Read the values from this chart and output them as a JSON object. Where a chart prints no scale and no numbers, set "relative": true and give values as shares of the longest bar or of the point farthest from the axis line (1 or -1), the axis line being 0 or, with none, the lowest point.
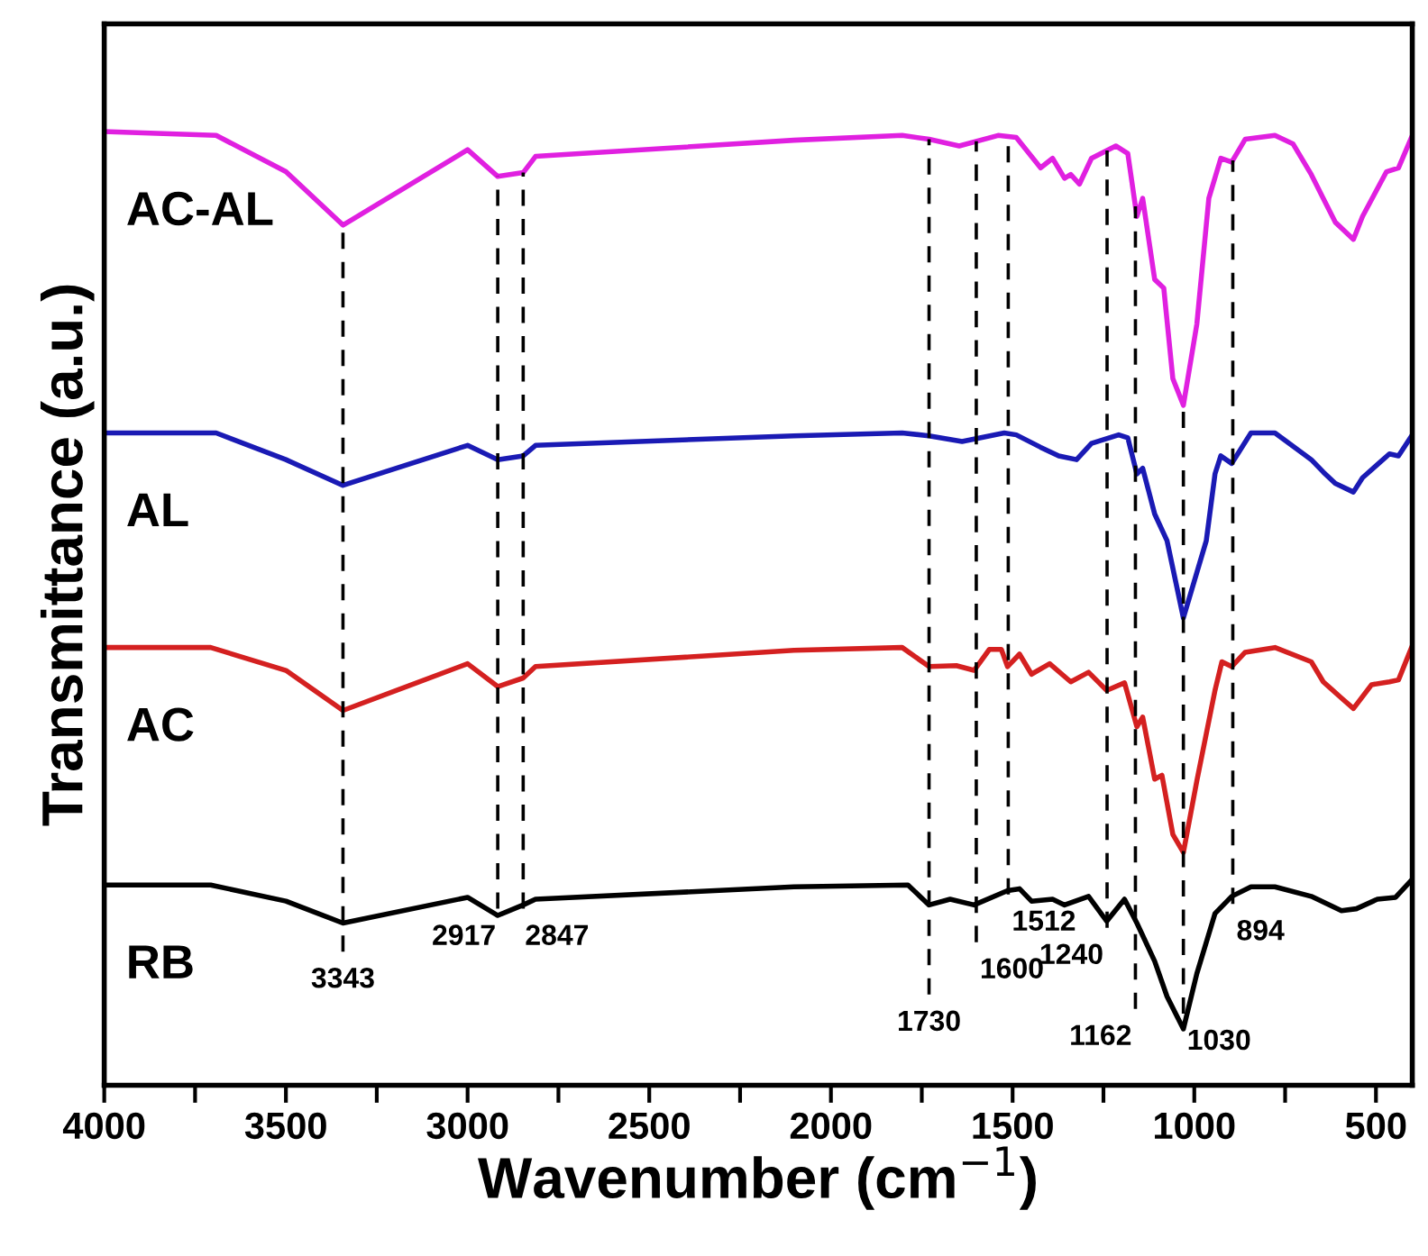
{
  "chart_data": {
    "type": "line",
    "relative": true,
    "xlabel": "Wavenumber (cm$^{−1}$)",
    "ylabel": "Transmittance (a.u.)",
    "xlim": [
      4000,
      400
    ],
    "xticks": [
      4000,
      {
        "value": 3750,
        "label": null
      },
      3500,
      {
        "value": 3250,
        "label": null
      },
      3000,
      {
        "value": 2750,
        "label": null
      },
      2500,
      {
        "value": 2250,
        "label": null
      },
      2000,
      {
        "value": 1750,
        "label": null
      },
      1500,
      {
        "value": 1250,
        "label": null
      },
      1000,
      {
        "value": 750,
        "label": null
      },
      500
    ],
    "grid": false,
    "legend": false,
    "line_style": "solid",
    "marker": "none",
    "tick_labels": "x",
    "series": [
      {
        "name": "AC-AL",
        "color": "#e020e0",
        "x": [
          4000,
          3692,
          3500,
          3343,
          3000,
          2917,
          2847,
          2813,
          2102,
          1804,
          1730,
          1647,
          1540,
          1490,
          1423,
          1390,
          1357,
          1340,
          1316,
          1283,
          1216,
          1183,
          1158,
          1142,
          1109,
          1084,
          1059,
          1030,
          993,
          960,
          927,
          897,
          860,
          778,
          728,
          678,
          645,
          612,
          562,
          537,
          471,
          438,
          400
        ],
        "values": [
          1.0,
          0.996,
          0.958,
          0.902,
          0.981,
          0.953,
          0.957,
          0.974,
          0.991,
          0.996,
          0.992,
          0.985,
          0.996,
          0.994,
          0.962,
          0.972,
          0.951,
          0.955,
          0.945,
          0.972,
          0.985,
          0.977,
          0.911,
          0.93,
          0.845,
          0.836,
          0.741,
          0.713,
          0.798,
          0.93,
          0.972,
          0.968,
          0.992,
          0.996,
          0.987,
          0.955,
          0.93,
          0.905,
          0.887,
          0.911,
          0.958,
          0.962,
          0.996
        ]
      },
      {
        "name": "AL",
        "color": "#1a1ab4",
        "x": [
          4000,
          3692,
          3500,
          3343,
          3000,
          2917,
          2847,
          2813,
          2102,
          1804,
          1730,
          1639,
          1523,
          1490,
          1423,
          1373,
          1324,
          1283,
          1208,
          1183,
          1158,
          1142,
          1109,
          1075,
          1030,
          967,
          943,
          927,
          897,
          844,
          778,
          678,
          645,
          612,
          562,
          537,
          463,
          438,
          400
        ],
        "values": [
          0.684,
          0.684,
          0.656,
          0.629,
          0.671,
          0.656,
          0.66,
          0.671,
          0.681,
          0.684,
          0.681,
          0.675,
          0.684,
          0.682,
          0.669,
          0.66,
          0.656,
          0.673,
          0.682,
          0.679,
          0.641,
          0.647,
          0.599,
          0.571,
          0.49,
          0.571,
          0.641,
          0.66,
          0.652,
          0.684,
          0.684,
          0.656,
          0.643,
          0.631,
          0.622,
          0.637,
          0.662,
          0.66,
          0.682
        ]
      },
      {
        "name": "AC",
        "color": "#d42020",
        "x": [
          4000,
          3707,
          3500,
          3343,
          3000,
          2917,
          2847,
          2813,
          2102,
          1804,
          1730,
          1655,
          1606,
          1564,
          1531,
          1514,
          1481,
          1448,
          1398,
          1340,
          1291,
          1241,
          1192,
          1158,
          1142,
          1109,
          1089,
          1059,
          1030,
          993,
          943,
          924,
          897,
          860,
          778,
          678,
          645,
          595,
          562,
          512,
          463,
          438,
          400
        ],
        "values": [
          0.459,
          0.459,
          0.435,
          0.393,
          0.442,
          0.418,
          0.427,
          0.439,
          0.456,
          0.459,
          0.439,
          0.44,
          0.435,
          0.457,
          0.457,
          0.439,
          0.452,
          0.431,
          0.442,
          0.423,
          0.433,
          0.414,
          0.422,
          0.376,
          0.386,
          0.321,
          0.325,
          0.263,
          0.244,
          0.319,
          0.414,
          0.444,
          0.439,
          0.454,
          0.459,
          0.444,
          0.423,
          0.406,
          0.395,
          0.42,
          0.423,
          0.425,
          0.461
        ]
      },
      {
        "name": "RB",
        "color": "#000000",
        "x": [
          4000,
          3707,
          3500,
          3343,
          3000,
          2917,
          2847,
          2813,
          2102,
          1788,
          1730,
          1672,
          1606,
          1514,
          1481,
          1448,
          1390,
          1357,
          1291,
          1241,
          1192,
          1158,
          1109,
          1075,
          1030,
          993,
          943,
          897,
          844,
          778,
          678,
          595,
          554,
          496,
          446,
          400
        ],
        "values": [
          0.21,
          0.21,
          0.193,
          0.17,
          0.197,
          0.178,
          0.189,
          0.195,
          0.208,
          0.21,
          0.189,
          0.195,
          0.189,
          0.204,
          0.206,
          0.193,
          0.195,
          0.189,
          0.198,
          0.172,
          0.195,
          0.17,
          0.13,
          0.093,
          0.059,
          0.117,
          0.18,
          0.198,
          0.208,
          0.208,
          0.198,
          0.183,
          0.185,
          0.195,
          0.197,
          0.216
        ]
      }
    ],
    "ref_lines": [
      {
        "axis": "x",
        "value": 3343,
        "label": "3343",
        "color": "#000000",
        "line_style": "dashed"
      },
      {
        "axis": "x",
        "value": 2917,
        "label": "2917",
        "color": "#000000",
        "line_style": "dashed"
      },
      {
        "axis": "x",
        "value": 2847,
        "label": "2847",
        "color": "#000000",
        "line_style": "dashed"
      },
      {
        "axis": "x",
        "value": 1730,
        "label": "1730",
        "color": "#000000",
        "line_style": "dashed"
      },
      {
        "axis": "x",
        "value": 1600,
        "label": "1600",
        "color": "#000000",
        "line_style": "dashed"
      },
      {
        "axis": "x",
        "value": 1512,
        "label": "1512",
        "color": "#000000",
        "line_style": "dashed"
      },
      {
        "axis": "x",
        "value": 1240,
        "label": "1240",
        "color": "#000000",
        "line_style": "dashed"
      },
      {
        "axis": "x",
        "value": 1162,
        "label": "1162",
        "color": "#000000",
        "line_style": "dashed"
      },
      {
        "axis": "x",
        "value": 1030,
        "label": "1030",
        "color": "#000000",
        "line_style": "dashed"
      },
      {
        "axis": "x",
        "value": 894,
        "label": "894",
        "color": "#000000",
        "line_style": "dashed"
      }
    ]
  }
}
